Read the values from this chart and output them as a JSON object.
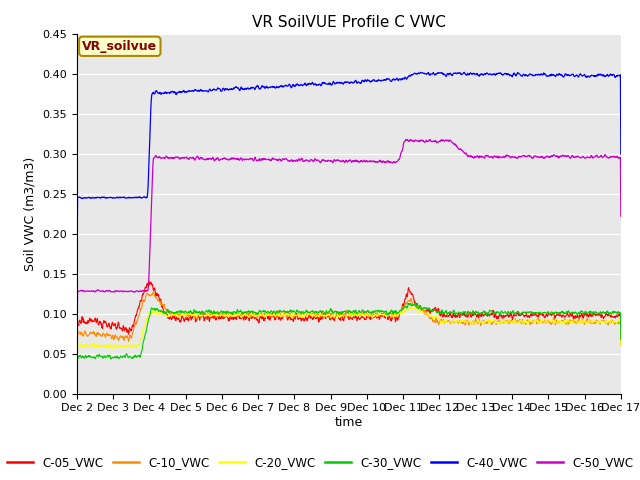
{
  "title": "VR SoilVUE Profile C VWC",
  "ylabel": "Soil VWC (m3/m3)",
  "xlabel": "time",
  "xlim_days": [
    2,
    17
  ],
  "ylim": [
    0.0,
    0.45
  ],
  "yticks": [
    0.0,
    0.05,
    0.1,
    0.15,
    0.2,
    0.25,
    0.3,
    0.35,
    0.4,
    0.45
  ],
  "xtick_labels": [
    "Dec 2",
    "Dec 3",
    "Dec 4",
    "Dec 5",
    "Dec 6",
    "Dec 7",
    "Dec 8",
    "Dec 9",
    "Dec 10",
    "Dec 11",
    "Dec 12",
    "Dec 13",
    "Dec 14",
    "Dec 15",
    "Dec 16",
    "Dec 17"
  ],
  "series_colors": {
    "C-05_VWC": "#ff0000",
    "C-10_VWC": "#ff8c00",
    "C-20_VWC": "#ffff00",
    "C-30_VWC": "#00cc00",
    "C-40_VWC": "#0000ff",
    "C-50_VWC": "#cc00cc"
  },
  "background_color": "#e8e8e8",
  "grid_color": "#ffffff",
  "legend_box_facecolor": "#ffffcc",
  "legend_box_edgecolor": "#aa8800",
  "legend_text": "VR_soilvue",
  "legend_text_color": "#880000",
  "title_fontsize": 11,
  "axis_fontsize": 9,
  "tick_fontsize": 8
}
